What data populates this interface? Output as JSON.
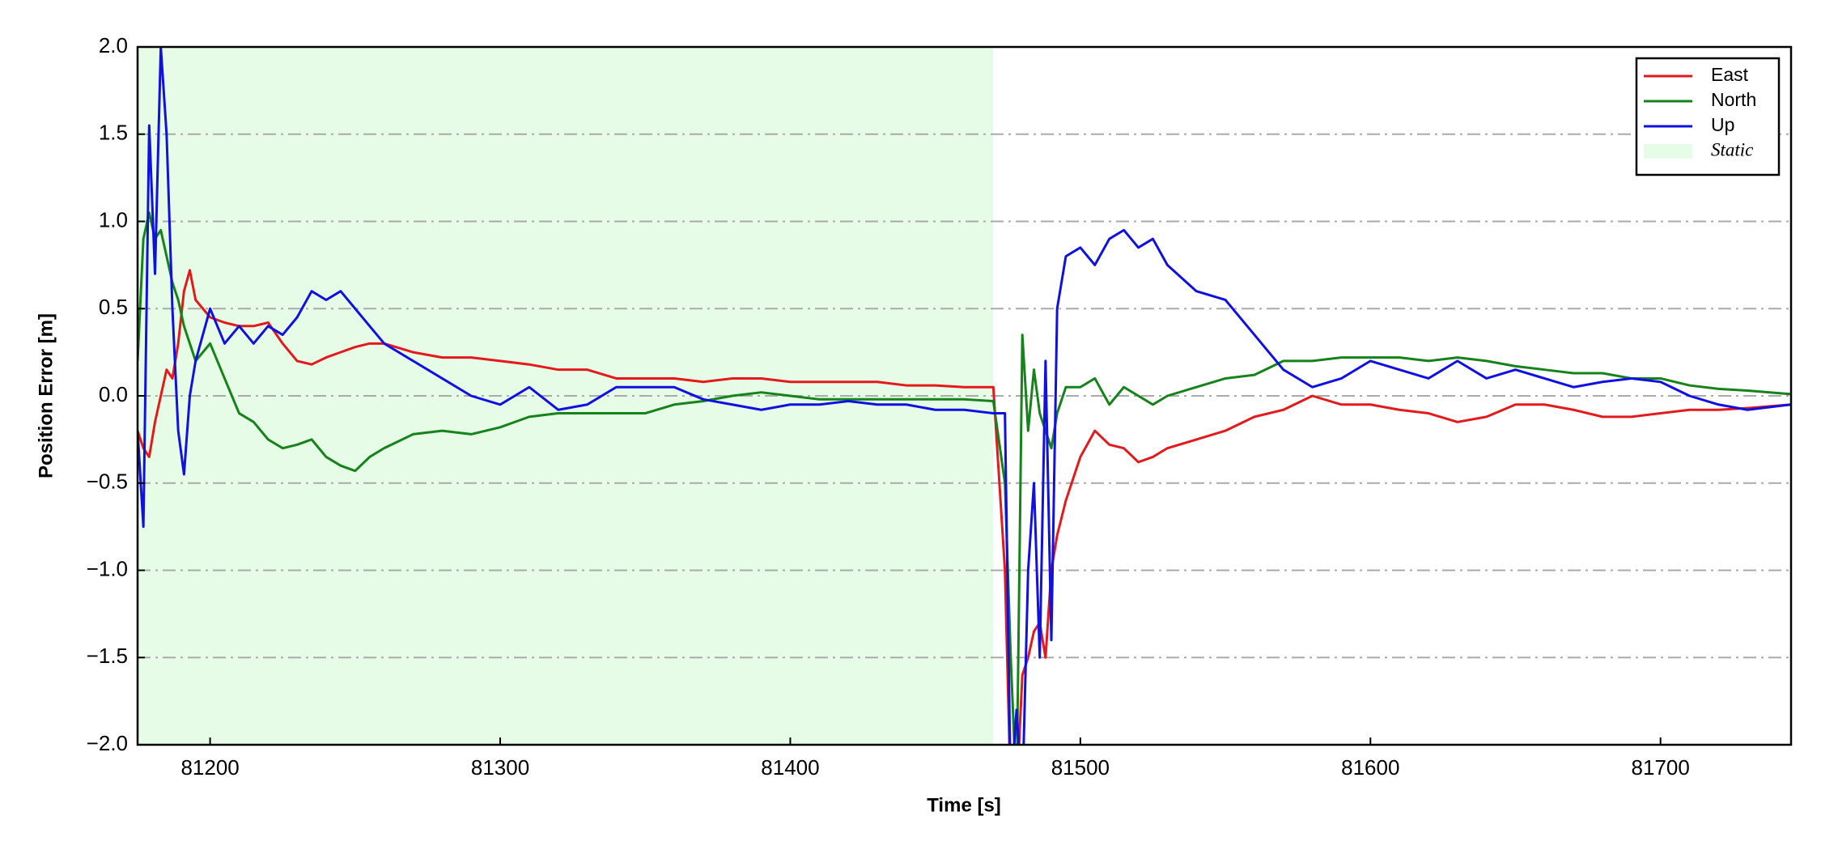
{
  "chart_data": {
    "type": "line",
    "xlabel": "Time [s]",
    "ylabel": "Position Error [m]",
    "xlim": [
      81175,
      81745
    ],
    "ylim": [
      -2.0,
      2.0
    ],
    "xticks": [
      81200,
      81300,
      81400,
      81500,
      81600,
      81700
    ],
    "yticks": [
      {
        "value": -2.0,
        "label": "−2.0"
      },
      {
        "value": -1.5,
        "label": "−1.5"
      },
      {
        "value": -1.0,
        "label": "−1.0"
      },
      {
        "value": -0.5,
        "label": "−0.5"
      },
      {
        "value": 0.0,
        "label": "0.0"
      },
      {
        "value": 0.5,
        "label": "0.5"
      },
      {
        "value": 1.0,
        "label": "1.0"
      },
      {
        "value": 1.5,
        "label": "1.5"
      },
      {
        "value": 2.0,
        "label": "2.0"
      }
    ],
    "grid": true,
    "legend": "upper right",
    "static": {
      "label": "Static",
      "range": [
        81175,
        81470
      ],
      "color": "#e6fce6"
    },
    "x": [
      81175,
      81177,
      81179,
      81181,
      81183,
      81185,
      81187,
      81189,
      81191,
      81193,
      81195,
      81200,
      81205,
      81210,
      81215,
      81220,
      81225,
      81230,
      81235,
      81240,
      81245,
      81250,
      81255,
      81260,
      81270,
      81280,
      81290,
      81300,
      81310,
      81320,
      81330,
      81340,
      81350,
      81360,
      81370,
      81380,
      81390,
      81400,
      81410,
      81420,
      81430,
      81440,
      81450,
      81460,
      81470,
      81474,
      81476,
      81478,
      81480,
      81482,
      81484,
      81486,
      81488,
      81490,
      81492,
      81495,
      81500,
      81505,
      81510,
      81515,
      81520,
      81525,
      81530,
      81540,
      81550,
      81560,
      81570,
      81580,
      81590,
      81600,
      81610,
      81620,
      81630,
      81640,
      81650,
      81660,
      81670,
      81680,
      81690,
      81700,
      81710,
      81720,
      81730,
      81745
    ],
    "series": [
      {
        "name": "East",
        "color": "#e31a1c",
        "values": [
          -0.2,
          -0.3,
          -0.35,
          -0.15,
          0.0,
          0.15,
          0.1,
          0.3,
          0.6,
          0.72,
          0.55,
          0.45,
          0.42,
          0.4,
          0.4,
          0.42,
          0.3,
          0.2,
          0.18,
          0.22,
          0.25,
          0.28,
          0.3,
          0.3,
          0.25,
          0.22,
          0.22,
          0.2,
          0.18,
          0.15,
          0.15,
          0.1,
          0.1,
          0.1,
          0.08,
          0.1,
          0.1,
          0.08,
          0.08,
          0.08,
          0.08,
          0.06,
          0.06,
          0.05,
          0.05,
          -1.0,
          -2.3,
          -2.3,
          -1.6,
          -1.5,
          -1.35,
          -1.3,
          -1.5,
          -1.0,
          -0.8,
          -0.6,
          -0.35,
          -0.2,
          -0.28,
          -0.3,
          -0.38,
          -0.35,
          -0.3,
          -0.25,
          -0.2,
          -0.12,
          -0.08,
          0.0,
          -0.05,
          -0.05,
          -0.08,
          -0.1,
          -0.15,
          -0.12,
          -0.05,
          -0.05,
          -0.08,
          -0.12,
          -0.12,
          -0.1,
          -0.08,
          -0.08,
          -0.07,
          -0.05
        ]
      },
      {
        "name": "North",
        "color": "#16821a",
        "values": [
          0.2,
          0.9,
          1.05,
          0.9,
          0.95,
          0.8,
          0.65,
          0.55,
          0.4,
          0.3,
          0.2,
          0.3,
          0.1,
          -0.1,
          -0.15,
          -0.25,
          -0.3,
          -0.28,
          -0.25,
          -0.35,
          -0.4,
          -0.43,
          -0.35,
          -0.3,
          -0.22,
          -0.2,
          -0.22,
          -0.18,
          -0.12,
          -0.1,
          -0.1,
          -0.1,
          -0.1,
          -0.05,
          -0.03,
          0.0,
          0.02,
          0.0,
          -0.02,
          -0.02,
          -0.02,
          -0.02,
          -0.02,
          -0.02,
          -0.03,
          -0.5,
          -1.5,
          -2.3,
          0.35,
          -0.2,
          0.15,
          -0.1,
          -0.2,
          -0.3,
          -0.1,
          0.05,
          0.05,
          0.1,
          -0.05,
          0.05,
          0.0,
          -0.05,
          0.0,
          0.05,
          0.1,
          0.12,
          0.2,
          0.2,
          0.22,
          0.22,
          0.22,
          0.2,
          0.22,
          0.2,
          0.17,
          0.15,
          0.13,
          0.13,
          0.1,
          0.1,
          0.06,
          0.04,
          0.03,
          0.01
        ]
      },
      {
        "name": "Up",
        "color": "#1010e0",
        "values": [
          -0.2,
          -0.75,
          1.55,
          0.7,
          2.0,
          1.5,
          0.5,
          -0.2,
          -0.45,
          0.0,
          0.2,
          0.5,
          0.3,
          0.4,
          0.3,
          0.4,
          0.35,
          0.45,
          0.6,
          0.55,
          0.6,
          0.5,
          0.4,
          0.3,
          0.2,
          0.1,
          0.0,
          -0.05,
          0.05,
          -0.08,
          -0.05,
          0.05,
          0.05,
          0.05,
          -0.02,
          -0.05,
          -0.08,
          -0.05,
          -0.05,
          -0.03,
          -0.05,
          -0.05,
          -0.08,
          -0.08,
          -0.1,
          -0.1,
          -2.3,
          -1.8,
          -2.3,
          -1.0,
          -0.5,
          -1.5,
          0.2,
          -1.4,
          0.5,
          0.8,
          0.85,
          0.75,
          0.9,
          0.95,
          0.85,
          0.9,
          0.75,
          0.6,
          0.55,
          0.35,
          0.15,
          0.05,
          0.1,
          0.2,
          0.15,
          0.1,
          0.2,
          0.1,
          0.15,
          0.1,
          0.05,
          0.08,
          0.1,
          0.08,
          0.0,
          -0.05,
          -0.08,
          -0.05
        ]
      }
    ]
  }
}
